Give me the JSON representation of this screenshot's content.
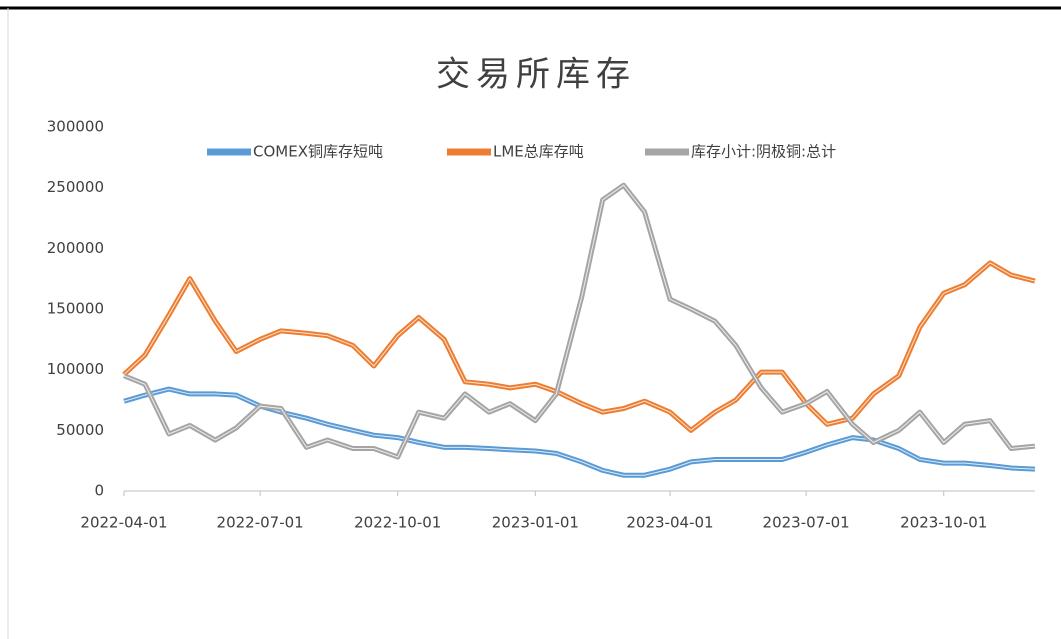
{
  "chart_data": {
    "type": "line",
    "title": "交易所库存",
    "x": [
      "2022-04-01",
      "2022-04-15",
      "2022-05-01",
      "2022-05-15",
      "2022-06-01",
      "2022-06-15",
      "2022-07-01",
      "2022-07-15",
      "2022-08-01",
      "2022-08-15",
      "2022-09-01",
      "2022-09-15",
      "2022-10-01",
      "2022-10-15",
      "2022-11-01",
      "2022-11-15",
      "2022-12-01",
      "2022-12-15",
      "2023-01-01",
      "2023-01-15",
      "2023-02-01",
      "2023-02-15",
      "2023-03-01",
      "2023-03-15",
      "2023-04-01",
      "2023-04-15",
      "2023-05-01",
      "2023-05-15",
      "2023-06-01",
      "2023-06-15",
      "2023-07-01",
      "2023-07-15",
      "2023-08-01",
      "2023-08-15",
      "2023-09-01",
      "2023-09-15",
      "2023-10-01",
      "2023-10-15",
      "2023-11-01",
      "2023-11-15",
      "2023-12-01"
    ],
    "series": [
      {
        "name": "COMEX铜库存短吨",
        "color": "#5b9bd5",
        "values": [
          74000,
          79000,
          84000,
          80000,
          80000,
          79000,
          70000,
          65000,
          60000,
          55000,
          50000,
          46000,
          44000,
          40000,
          36000,
          36000,
          35000,
          34000,
          33000,
          31000,
          24000,
          17000,
          13000,
          13000,
          18000,
          24000,
          26000,
          26000,
          26000,
          26000,
          32000,
          38000,
          44000,
          42000,
          35000,
          26000,
          23000,
          23000,
          21000,
          19000,
          18000
        ]
      },
      {
        "name": "LME总库存吨",
        "color": "#ed7d31",
        "values": [
          96000,
          112000,
          145000,
          175000,
          140000,
          115000,
          125000,
          132000,
          130000,
          128000,
          120000,
          103000,
          128000,
          143000,
          125000,
          90000,
          88000,
          85000,
          88000,
          82000,
          72000,
          65000,
          68000,
          74000,
          65000,
          50000,
          65000,
          75000,
          98000,
          98000,
          72000,
          55000,
          60000,
          80000,
          95000,
          135000,
          163000,
          170000,
          188000,
          178000,
          173000
        ]
      },
      {
        "name": "库存小计:阴极铜:总计",
        "color": "#a5a5a5",
        "values": [
          95000,
          88000,
          47000,
          54000,
          42000,
          52000,
          70000,
          68000,
          36000,
          42000,
          35000,
          35000,
          28000,
          65000,
          60000,
          80000,
          65000,
          72000,
          58000,
          80000,
          160000,
          240000,
          252000,
          230000,
          158000,
          150000,
          140000,
          120000,
          85000,
          65000,
          72000,
          82000,
          55000,
          40000,
          50000,
          65000,
          40000,
          55000,
          58000,
          35000,
          37000
        ]
      }
    ],
    "xlim": [
      "2022-04-01",
      "2023-12-01"
    ],
    "xticks": [
      "2022-04-01",
      "2022-07-01",
      "2022-10-01",
      "2023-01-01",
      "2023-04-01",
      "2023-07-01",
      "2023-10-01"
    ],
    "ylim": [
      0,
      300000
    ],
    "yticks": [
      0,
      50000,
      100000,
      150000,
      200000,
      250000,
      300000
    ],
    "grid": false
  }
}
